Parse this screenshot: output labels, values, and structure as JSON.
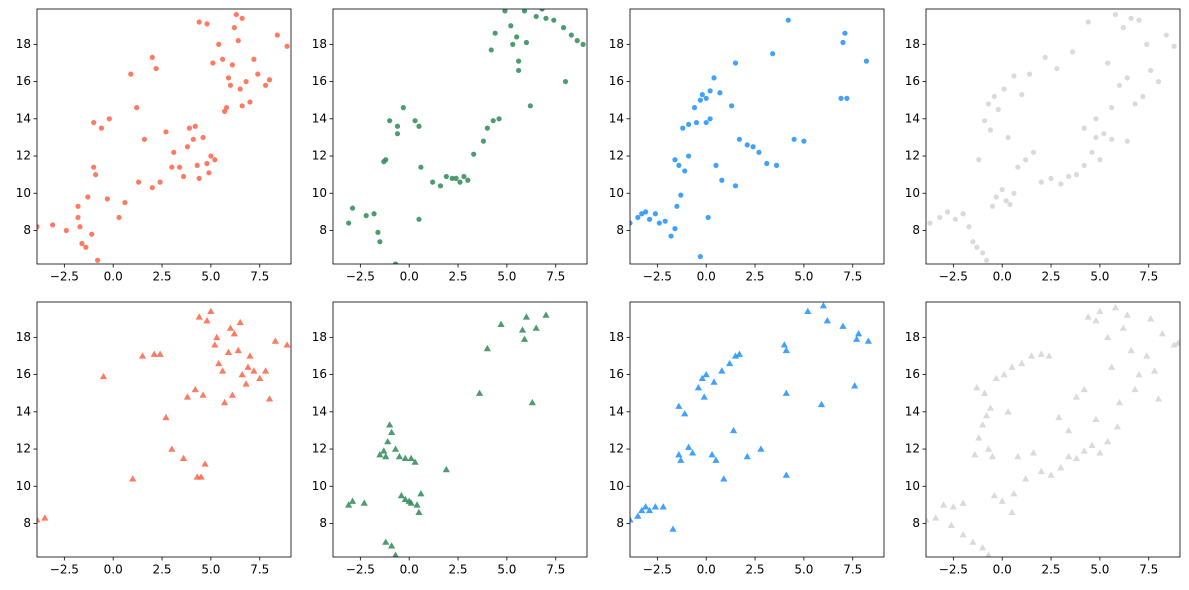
{
  "chart_data": [
    {
      "type": "scatter",
      "marker": "circle",
      "color": "#ff6347",
      "x": [
        -3.9,
        -3.1,
        -2.4,
        -1.8,
        -1.7,
        -1.6,
        -1.4,
        -1.1,
        -0.8,
        -1.3,
        -1.8,
        -1.0,
        -0.9,
        -1.0,
        -0.6,
        -0.2,
        -0.3,
        0.3,
        0.6,
        0.9,
        1.2,
        1.3,
        1.6,
        2.0,
        2.0,
        2.2,
        2.4,
        2.7,
        3.0,
        3.1,
        3.4,
        3.6,
        3.8,
        3.9,
        4.1,
        4.2,
        4.3,
        4.4,
        4.6,
        4.8,
        4.9,
        5.0,
        5.2,
        4.4,
        4.8,
        5.1,
        5.4,
        5.6,
        5.8,
        5.9,
        6.0,
        6.1,
        6.3,
        6.5,
        6.6,
        6.8,
        7.0,
        7.2,
        7.4,
        7.8,
        8.0,
        8.4,
        8.9,
        6.2,
        6.6,
        5.7,
        6.4
      ],
      "y": [
        8.2,
        8.3,
        8.0,
        8.7,
        8.2,
        7.3,
        7.1,
        7.8,
        6.4,
        9.8,
        9.3,
        11.4,
        11.0,
        13.8,
        13.5,
        14.0,
        9.7,
        8.7,
        9.5,
        16.4,
        14.6,
        10.6,
        12.9,
        10.3,
        17.3,
        16.7,
        10.6,
        13.3,
        11.4,
        12.2,
        11.4,
        10.9,
        12.5,
        13.5,
        12.9,
        13.6,
        11.5,
        10.8,
        13.0,
        11.6,
        11.1,
        12.0,
        11.8,
        19.2,
        19.1,
        17.0,
        18.0,
        17.2,
        14.6,
        16.2,
        15.8,
        16.9,
        19.6,
        15.6,
        14.7,
        16.0,
        14.9,
        17.2,
        16.4,
        15.8,
        16.1,
        18.5,
        17.9,
        18.9,
        19.4,
        14.4,
        18.2
      ],
      "xlim": [
        -3.9,
        9.1
      ],
      "ylim": [
        6.2,
        19.9
      ],
      "xticks": [
        {
          "value": -2.5,
          "label": "−2.5"
        },
        {
          "value": 0,
          "label": "0.0"
        },
        2.5,
        {
          "value": 5,
          "label": "5.0"
        },
        {
          "value": 7.5,
          "label": "7.5"
        }
      ],
      "yticks": [
        8,
        10,
        12,
        14,
        16,
        18
      ]
    },
    {
      "type": "scatter",
      "marker": "circle",
      "color": "#2e8b57",
      "x": [
        -3.1,
        -2.9,
        -2.2,
        -1.8,
        -1.6,
        -1.5,
        -1.3,
        -1.2,
        -1.0,
        -0.6,
        -0.6,
        -0.3,
        -0.7,
        0.3,
        0.5,
        0.5,
        0.6,
        1.2,
        1.6,
        1.9,
        2.2,
        2.4,
        2.6,
        2.8,
        3.0,
        3.3,
        3.8,
        4.0,
        4.3,
        4.6,
        4.2,
        4.4,
        4.9,
        5.2,
        5.3,
        5.5,
        5.6,
        5.9,
        6.0,
        6.2,
        6.5,
        7.0,
        7.4,
        7.9,
        8.3,
        8.6,
        8.9,
        8.0,
        5.6,
        6.8
      ],
      "y": [
        8.4,
        9.2,
        8.8,
        8.9,
        7.9,
        7.4,
        11.7,
        11.8,
        13.9,
        13.6,
        13.2,
        14.6,
        6.2,
        13.9,
        13.6,
        8.6,
        11.4,
        10.6,
        10.4,
        10.9,
        10.8,
        10.8,
        10.6,
        10.9,
        10.7,
        12.1,
        12.8,
        13.5,
        13.9,
        14.0,
        17.7,
        18.6,
        19.8,
        19.0,
        18.0,
        18.4,
        17.1,
        19.8,
        18.1,
        14.7,
        19.5,
        19.4,
        19.3,
        18.9,
        18.5,
        18.2,
        18.0,
        16.0,
        16.6,
        19.9
      ],
      "xlim": [
        -3.9,
        9.1
      ],
      "ylim": [
        6.2,
        19.9
      ],
      "xticks": [
        {
          "value": -2.5,
          "label": "−2.5"
        },
        {
          "value": 0,
          "label": "0.0"
        },
        2.5,
        {
          "value": 5,
          "label": "5.0"
        },
        {
          "value": 7.5,
          "label": "7.5"
        }
      ],
      "yticks": [
        8,
        10,
        12,
        14,
        16,
        18
      ]
    },
    {
      "type": "scatter",
      "marker": "circle",
      "color": "#1e90ff",
      "x": [
        -3.9,
        -3.5,
        -3.3,
        -3.1,
        -2.9,
        -2.6,
        -2.4,
        -2.1,
        -1.8,
        -1.6,
        -1.5,
        -1.3,
        -1.6,
        -1.4,
        -1.1,
        -0.9,
        -1.2,
        -0.9,
        -0.6,
        -0.5,
        -0.3,
        -0.2,
        0.0,
        0.2,
        0.4,
        0.2,
        0.0,
        0.1,
        0.5,
        0.8,
        1.3,
        1.5,
        1.5,
        1.7,
        2.1,
        2.4,
        2.7,
        3.1,
        3.6,
        3.4,
        4.2,
        4.5,
        5.0,
        6.9,
        7.2,
        7.1,
        7.0,
        8.2,
        -0.3,
        0.7
      ],
      "y": [
        8.4,
        8.7,
        8.9,
        9.0,
        8.6,
        8.9,
        8.4,
        8.5,
        7.7,
        8.1,
        9.3,
        9.9,
        11.8,
        11.5,
        11.2,
        12.0,
        13.5,
        13.7,
        14.6,
        13.8,
        6.6,
        15.3,
        15.1,
        15.5,
        16.2,
        14.0,
        13.8,
        8.7,
        11.5,
        10.7,
        14.7,
        17.0,
        10.4,
        12.9,
        12.6,
        12.5,
        12.2,
        11.6,
        11.5,
        17.5,
        19.3,
        12.9,
        12.8,
        15.1,
        15.1,
        18.6,
        18.1,
        17.1,
        15.0,
        15.4
      ],
      "xlim": [
        -3.9,
        9.1
      ],
      "ylim": [
        6.2,
        19.9
      ],
      "xticks": [
        {
          "value": -2.5,
          "label": "−2.5"
        },
        {
          "value": 0,
          "label": "0.0"
        },
        2.5,
        {
          "value": 5,
          "label": "5.0"
        },
        {
          "value": 7.5,
          "label": "7.5"
        }
      ],
      "yticks": [
        8,
        10,
        12,
        14,
        16,
        18
      ]
    },
    {
      "type": "scatter",
      "marker": "circle",
      "color": "#d3d3d3",
      "x": [
        -3.7,
        -3.2,
        -2.8,
        -2.4,
        -2.0,
        -1.7,
        -1.5,
        -1.3,
        -1.0,
        -0.8,
        -0.5,
        -0.3,
        0.0,
        0.2,
        0.4,
        0.6,
        -1.2,
        -0.9,
        -0.7,
        -0.4,
        -0.2,
        0.1,
        -0.6,
        0.3,
        0.8,
        1.2,
        1.6,
        2.0,
        2.5,
        3.0,
        3.4,
        3.8,
        4.2,
        4.6,
        5.0,
        1.4,
        2.2,
        2.8,
        3.6,
        4.4,
        4.2,
        4.8,
        5.2,
        5.6,
        6.0,
        6.4,
        6.8,
        7.2,
        7.6,
        8.0,
        8.4,
        8.8,
        5.4,
        5.8,
        6.2,
        6.6,
        7.0,
        7.4,
        6.4,
        5.6,
        4.8,
        0.6,
        1.0
      ],
      "y": [
        8.4,
        8.7,
        9.0,
        8.6,
        8.9,
        8.2,
        7.4,
        7.1,
        6.8,
        6.4,
        9.3,
        9.8,
        10.2,
        9.6,
        9.4,
        10.0,
        11.8,
        13.9,
        14.8,
        15.2,
        14.5,
        15.6,
        13.4,
        13.0,
        11.4,
        11.8,
        12.2,
        10.6,
        10.8,
        10.5,
        10.9,
        11.0,
        11.5,
        12.2,
        11.8,
        16.4,
        17.3,
        16.7,
        17.6,
        19.2,
        13.5,
        14.0,
        13.2,
        14.6,
        15.8,
        16.2,
        14.8,
        15.2,
        16.6,
        16.0,
        18.5,
        17.9,
        17.0,
        19.6,
        18.9,
        19.4,
        19.3,
        18.0,
        12.8,
        12.9,
        13.0,
        16.3,
        15.3
      ],
      "xlim": [
        -3.9,
        9.1
      ],
      "ylim": [
        6.2,
        19.9
      ],
      "xticks": [
        {
          "value": -2.5,
          "label": "−2.5"
        },
        {
          "value": 0,
          "label": "0.0"
        },
        2.5,
        {
          "value": 5,
          "label": "5.0"
        },
        {
          "value": 7.5,
          "label": "7.5"
        }
      ],
      "yticks": [
        8,
        10,
        12,
        14,
        16,
        18
      ]
    },
    {
      "type": "scatter",
      "marker": "triangle",
      "color": "#ff6347",
      "x": [
        -3.9,
        -3.5,
        -0.5,
        1.0,
        1.5,
        2.1,
        2.4,
        2.7,
        3.0,
        3.6,
        3.8,
        4.2,
        4.3,
        4.5,
        4.7,
        4.4,
        4.8,
        5.0,
        5.3,
        5.4,
        5.6,
        5.7,
        5.9,
        6.0,
        6.2,
        6.4,
        6.6,
        6.8,
        7.0,
        7.2,
        7.5,
        7.8,
        8.0,
        8.3,
        8.9,
        6.5,
        6.9,
        5.2,
        4.6,
        6.1
      ],
      "y": [
        8.2,
        8.3,
        15.9,
        10.4,
        17.0,
        17.1,
        17.1,
        13.7,
        12.0,
        11.5,
        14.8,
        15.2,
        10.5,
        10.5,
        11.2,
        19.1,
        18.9,
        19.4,
        18.0,
        16.6,
        16.2,
        14.5,
        17.2,
        18.5,
        18.2,
        17.3,
        16.0,
        15.5,
        17.0,
        16.2,
        15.8,
        16.2,
        14.7,
        17.8,
        17.6,
        18.8,
        16.4,
        17.6,
        14.9,
        14.9
      ],
      "xlim": [
        -3.9,
        9.1
      ],
      "ylim": [
        6.2,
        19.9
      ],
      "xticks": [
        {
          "value": -2.5,
          "label": "−2.5"
        },
        {
          "value": 0,
          "label": "0.0"
        },
        2.5,
        {
          "value": 5,
          "label": "5.0"
        },
        {
          "value": 7.5,
          "label": "7.5"
        }
      ],
      "yticks": [
        8,
        10,
        12,
        14,
        16,
        18
      ]
    },
    {
      "type": "scatter",
      "marker": "triangle",
      "color": "#2e8b57",
      "x": [
        -3.1,
        -2.9,
        -2.3,
        -1.5,
        -1.3,
        -1.2,
        -1.0,
        -0.9,
        -1.1,
        -0.7,
        -0.5,
        -0.2,
        0.1,
        0.3,
        -1.2,
        -0.9,
        -0.7,
        -0.4,
        -0.2,
        0.0,
        0.4,
        0.5,
        0.6,
        1.9,
        3.6,
        4.0,
        4.7,
        5.8,
        5.9,
        6.0,
        6.3,
        6.5,
        7.0,
        0.1
      ],
      "y": [
        9.0,
        9.2,
        9.1,
        11.7,
        11.9,
        11.6,
        13.3,
        12.9,
        12.4,
        12.0,
        11.6,
        11.5,
        11.5,
        11.3,
        7.0,
        6.8,
        6.3,
        9.5,
        9.3,
        9.2,
        9.0,
        8.6,
        9.6,
        10.9,
        15.0,
        17.4,
        18.7,
        18.4,
        17.9,
        19.1,
        14.5,
        18.5,
        19.2,
        9.1
      ],
      "xlim": [
        -3.9,
        9.1
      ],
      "ylim": [
        6.2,
        19.9
      ],
      "xticks": [
        {
          "value": -2.5,
          "label": "−2.5"
        },
        {
          "value": 0,
          "label": "0.0"
        },
        2.5,
        {
          "value": 5,
          "label": "5.0"
        },
        {
          "value": 7.5,
          "label": "7.5"
        }
      ],
      "yticks": [
        8,
        10,
        12,
        14,
        16,
        18
      ]
    },
    {
      "type": "scatter",
      "marker": "triangle",
      "color": "#1e90ff",
      "x": [
        -3.9,
        -3.5,
        -3.3,
        -3.1,
        -2.9,
        -2.6,
        -2.2,
        -1.7,
        -1.4,
        -1.3,
        -1.4,
        -1.1,
        -0.9,
        -0.7,
        -0.4,
        -0.2,
        0.0,
        -0.1,
        0.3,
        0.5,
        0.4,
        0.8,
        1.2,
        1.5,
        1.7,
        0.9,
        1.4,
        2.1,
        2.8,
        4.0,
        4.1,
        4.1,
        4.1,
        5.2,
        5.9,
        6.0,
        6.2,
        7.0,
        7.6,
        7.8,
        7.7,
        8.3
      ],
      "y": [
        8.2,
        8.4,
        8.7,
        8.9,
        8.7,
        8.9,
        8.9,
        7.7,
        11.7,
        11.4,
        14.3,
        13.9,
        12.1,
        11.8,
        15.3,
        15.8,
        16.0,
        14.8,
        11.7,
        11.4,
        15.6,
        16.2,
        16.6,
        17.0,
        17.1,
        10.4,
        13.0,
        11.6,
        12.0,
        17.6,
        17.3,
        15.0,
        10.6,
        19.4,
        14.4,
        19.7,
        18.9,
        18.6,
        15.4,
        18.2,
        17.9,
        17.8
      ],
      "xlim": [
        -3.9,
        9.1
      ],
      "ylim": [
        6.2,
        19.9
      ],
      "xticks": [
        {
          "value": -2.5,
          "label": "−2.5"
        },
        {
          "value": 0,
          "label": "0.0"
        },
        2.5,
        {
          "value": 5,
          "label": "5.0"
        },
        {
          "value": 7.5,
          "label": "7.5"
        }
      ],
      "yticks": [
        8,
        10,
        12,
        14,
        16,
        18
      ]
    },
    {
      "type": "scatter",
      "marker": "triangle",
      "color": "#d3d3d3",
      "x": [
        -3.9,
        -3.4,
        -2.6,
        -2.0,
        -1.5,
        -1.0,
        -0.7,
        -3.0,
        -2.5,
        -2.0,
        -1.4,
        -1.2,
        -1.0,
        -0.7,
        -0.5,
        -0.4,
        0.0,
        0.5,
        0.6,
        -1.3,
        -0.9,
        -0.6,
        -0.3,
        0.1,
        0.5,
        1.0,
        1.5,
        2.0,
        2.4,
        -0.8,
        0.3,
        0.8,
        1.2,
        1.6,
        2.0,
        2.5,
        3.0,
        3.4,
        3.8,
        4.2,
        4.6,
        5.0,
        5.4,
        2.9,
        3.4,
        3.8,
        4.2,
        4.4,
        4.8,
        5.0,
        5.4,
        5.8,
        6.2,
        6.6,
        7.0,
        7.4,
        7.8,
        8.2,
        8.8,
        9.0,
        6.0,
        6.8,
        5.6,
        4.8,
        7.6,
        6.4,
        8.0,
        5.9
      ],
      "y": [
        8.2,
        8.3,
        7.9,
        7.4,
        7.0,
        6.7,
        6.3,
        9.0,
        8.9,
        9.1,
        11.7,
        12.6,
        13.3,
        12.0,
        11.6,
        9.5,
        9.2,
        8.6,
        9.6,
        15.3,
        15.0,
        14.2,
        15.8,
        16.0,
        16.4,
        16.6,
        17.0,
        17.1,
        17.0,
        13.8,
        14.0,
        11.6,
        10.4,
        11.8,
        10.8,
        10.6,
        11.0,
        11.6,
        11.5,
        11.9,
        12.2,
        11.8,
        12.4,
        13.7,
        13.0,
        14.8,
        15.2,
        19.1,
        18.9,
        19.4,
        18.0,
        19.6,
        18.5,
        17.3,
        16.0,
        17.0,
        16.2,
        18.2,
        17.6,
        17.7,
        14.5,
        15.2,
        16.4,
        13.6,
        19.0,
        19.2,
        14.7,
        13.2
      ],
      "xlim": [
        -3.9,
        9.1
      ],
      "ylim": [
        6.2,
        19.9
      ],
      "xticks": [
        {
          "value": -2.5,
          "label": "−2.5"
        },
        {
          "value": 0,
          "label": "0.0"
        },
        2.5,
        {
          "value": 5,
          "label": "5.0"
        },
        {
          "value": 7.5,
          "label": "7.5"
        }
      ],
      "yticks": [
        8,
        10,
        12,
        14,
        16,
        18
      ]
    }
  ]
}
